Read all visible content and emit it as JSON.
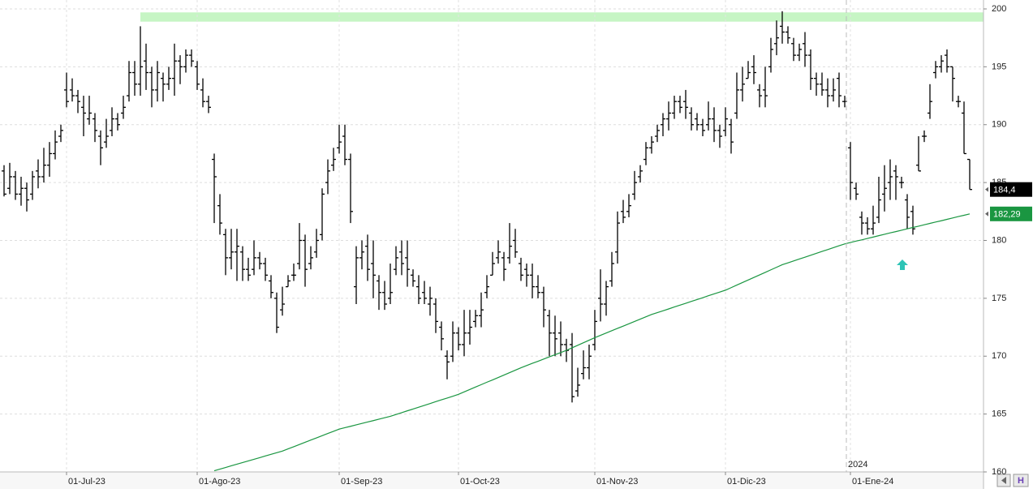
{
  "chart_data": {
    "type": "ohlc",
    "year_label": "2024",
    "categories": [
      null,
      null,
      null,
      null,
      null,
      null,
      null,
      null,
      null,
      null,
      null,
      "01-Jul-23",
      null,
      null,
      null,
      null,
      null,
      null,
      null,
      null,
      null,
      null,
      null,
      null,
      null,
      null,
      null,
      null,
      null,
      null,
      null,
      null,
      null,
      null,
      "01-Ago-23",
      null,
      null,
      null,
      null,
      null,
      null,
      null,
      null,
      null,
      null,
      null,
      null,
      null,
      null,
      null,
      null,
      null,
      null,
      null,
      null,
      null,
      null,
      null,
      null,
      "01-Sep-23",
      null,
      null,
      null,
      null,
      null,
      null,
      null,
      null,
      null,
      null,
      null,
      null,
      null,
      null,
      null,
      null,
      null,
      null,
      null,
      null,
      "01-Oct-23",
      null,
      null,
      null,
      null,
      null,
      null,
      null,
      null,
      null,
      null,
      null,
      null,
      null,
      null,
      null,
      null,
      null,
      null,
      null,
      null,
      null,
      null,
      null,
      "01-Nov-23",
      null,
      null,
      null,
      null,
      null,
      null,
      null,
      null,
      null,
      null,
      null,
      null,
      null,
      null,
      null,
      null,
      null,
      null,
      null,
      null,
      null,
      null,
      "01-Dic-23",
      null,
      null,
      null,
      null,
      null,
      null,
      null,
      null,
      null,
      null,
      null,
      null,
      null,
      null,
      null,
      null,
      null,
      null,
      null,
      null,
      null,
      "01-Ene-24",
      null,
      null,
      null,
      null,
      null,
      null,
      null,
      null,
      null,
      null,
      null,
      null,
      null,
      null,
      null,
      null,
      null,
      null,
      null,
      null,
      null
    ],
    "open": [
      186,
      184.5,
      185.5,
      184,
      184.5,
      184,
      186,
      185.5,
      186.5,
      187.5,
      189,
      193,
      193,
      192.5,
      191.5,
      190.5,
      190.5,
      189,
      188.5,
      189.5,
      190.5,
      191,
      192.5,
      194.5,
      193.5,
      195.5,
      194.5,
      193,
      194,
      193.5,
      194,
      195.5,
      195,
      196,
      195,
      193,
      192,
      187,
      183,
      180.5,
      178.5,
      179,
      179,
      177.5,
      177.5,
      178.5,
      178,
      176.5,
      175,
      174,
      176,
      177,
      178,
      180,
      178,
      179,
      180.5,
      185,
      186.5,
      188,
      189,
      187,
      176,
      178.5,
      179.5,
      178,
      176.5,
      175.5,
      175,
      177.5,
      179,
      178.5,
      177,
      176,
      175.5,
      174.5,
      174.5,
      172.5,
      170,
      170,
      172,
      171,
      172,
      173,
      173.5,
      175.5,
      177,
      178.5,
      178.5,
      178.5,
      180,
      178,
      177.5,
      177,
      176,
      175.5,
      173.5,
      172,
      172,
      171,
      171,
      167,
      168.5,
      169,
      171,
      175,
      174.5,
      176.5,
      179,
      182.5,
      182.5,
      184,
      185.5,
      187,
      188,
      189,
      190,
      190.5,
      191,
      192,
      192,
      191,
      190.5,
      190,
      190,
      190.5,
      189.5,
      189.5,
      190,
      191,
      193,
      194,
      195,
      193,
      193,
      195,
      197,
      198.5,
      198,
      197,
      196,
      197,
      196,
      194,
      193.5,
      193,
      192.5,
      194,
      192,
      188,
      184.5,
      182,
      181.5,
      181,
      182,
      184,
      185,
      186,
      185,
      183.5,
      182.5,
      186.5,
      189,
      191,
      194.5,
      195,
      196,
      195,
      192,
      191,
      187
    ],
    "high": [
      186.5,
      186.7,
      186,
      185.5,
      185,
      186,
      187,
      188,
      188.5,
      189.5,
      190,
      194.5,
      194,
      193,
      192.5,
      192.5,
      191,
      189.5,
      190.5,
      191.5,
      191,
      192.5,
      195.5,
      195.5,
      198.5,
      197,
      195,
      195.5,
      194.5,
      195,
      197,
      196,
      196.5,
      196.5,
      195.5,
      194,
      192.5,
      187.5,
      184,
      181,
      181,
      181,
      179.5,
      178.5,
      180,
      179,
      178.5,
      177,
      175.5,
      176,
      177,
      178,
      181.5,
      180.5,
      179.5,
      181,
      184.5,
      187,
      188,
      190,
      190,
      187.5,
      179.5,
      180,
      180.5,
      180,
      177,
      176.5,
      178,
      179.5,
      180,
      180,
      177.5,
      177,
      176.5,
      176,
      175,
      173,
      170.5,
      173,
      172.5,
      174,
      174,
      174,
      175.5,
      177,
      179,
      180,
      179,
      181.5,
      181,
      178.5,
      178,
      178,
      177,
      176,
      174,
      173.5,
      173,
      171.5,
      172,
      169,
      170.5,
      171,
      174,
      177.5,
      176.5,
      179,
      182.5,
      183.5,
      184,
      186,
      186.5,
      188.5,
      189,
      190,
      191,
      192,
      192.5,
      192.5,
      193,
      191.5,
      191,
      190.5,
      192,
      191.5,
      190,
      191.5,
      190.5,
      194.5,
      195,
      195.5,
      196,
      193.5,
      195,
      197.5,
      199,
      199.8,
      198.5,
      197.5,
      197,
      198,
      196.5,
      194.5,
      194.5,
      194,
      194,
      194.5,
      192.5,
      188.5,
      185,
      182.5,
      182,
      183,
      185.5,
      186.5,
      187,
      186.5,
      185.5,
      184,
      183,
      189,
      189.5,
      193.5,
      195.5,
      196,
      196.5,
      195,
      192.5,
      192,
      187
    ],
    "low": [
      183.8,
      184,
      183.5,
      183,
      182.5,
      183.5,
      184.5,
      185,
      185.5,
      187,
      188.5,
      191.5,
      192,
      191,
      189,
      190,
      188.5,
      186.5,
      188,
      189,
      189.5,
      190.5,
      192,
      192.5,
      192.5,
      193,
      191.5,
      192,
      192,
      193,
      192.5,
      193.5,
      194.5,
      195,
      193,
      191.5,
      191,
      181.5,
      180.5,
      177,
      177.5,
      176.5,
      176.5,
      176.5,
      177,
      177.5,
      176.5,
      175,
      172,
      173.5,
      176,
      176.5,
      177.5,
      176,
      177.5,
      178.5,
      180,
      184,
      186,
      187.5,
      186.5,
      181.5,
      174.5,
      177.5,
      176.5,
      175,
      174,
      174,
      174.5,
      177,
      177,
      176,
      176,
      174.5,
      174.5,
      173.5,
      172,
      170.5,
      168,
      169.5,
      170.5,
      170,
      171,
      172.5,
      172.5,
      175,
      177,
      178,
      176.5,
      178,
      178.5,
      176.5,
      176,
      175,
      175,
      172.5,
      170,
      170,
      170,
      169.5,
      166,
      166.5,
      168,
      168,
      170.5,
      173,
      173.5,
      176,
      178,
      181.5,
      182,
      183.5,
      185,
      186.5,
      187.5,
      188.5,
      189,
      189.5,
      190.5,
      191,
      190.5,
      189.5,
      189.5,
      189,
      189.5,
      188.5,
      188,
      189,
      187.5,
      190.5,
      192,
      194,
      193.5,
      191.5,
      191.5,
      194.5,
      196,
      197,
      197,
      195.5,
      195.5,
      195,
      193,
      192.5,
      192.5,
      191.5,
      192,
      191.5,
      191.5,
      183.5,
      183.5,
      180.5,
      180.5,
      180.5,
      181.5,
      182.5,
      183.5,
      183.5,
      184.5,
      181,
      180.5,
      186,
      188.5,
      190.5,
      194,
      194.5,
      194.5,
      192,
      191.5,
      187.5,
      184.4
    ],
    "close": [
      184,
      185.5,
      184,
      184.5,
      183.5,
      185.5,
      185.5,
      186.5,
      187.5,
      188.5,
      189.5,
      192,
      192.5,
      192,
      191,
      191,
      189.5,
      188,
      189,
      190.5,
      190,
      191.5,
      194.5,
      193.5,
      195,
      194.5,
      193,
      194.5,
      193.5,
      194,
      195.5,
      195,
      196,
      195.5,
      193.5,
      192,
      191.5,
      185.5,
      181.5,
      178.5,
      179,
      179.5,
      177.5,
      177,
      178.5,
      178,
      177,
      175.5,
      172.5,
      174.5,
      176.5,
      177,
      180,
      177.5,
      178.5,
      180,
      184,
      186,
      187,
      188.5,
      187,
      182.5,
      178.5,
      179,
      177.5,
      177,
      175.5,
      174.5,
      175.5,
      178.5,
      178,
      177.5,
      176.5,
      175,
      175,
      175,
      173,
      171.5,
      169.5,
      172,
      171,
      172,
      172.5,
      173.5,
      174,
      176,
      178,
      179,
      177.5,
      179.5,
      179,
      177,
      177,
      176,
      175.5,
      174,
      172,
      171.5,
      171,
      170.5,
      166.5,
      167.5,
      169,
      170,
      173,
      174.5,
      176,
      178,
      181.5,
      182,
      183,
      185,
      186,
      188,
      188.5,
      189.5,
      190.5,
      191,
      192,
      191.5,
      191.5,
      190,
      190,
      189.5,
      190.5,
      189.5,
      189,
      190.5,
      188.5,
      193,
      193.5,
      194.5,
      194.5,
      192.5,
      192.5,
      196.5,
      197.5,
      198,
      197.5,
      196,
      196.5,
      196,
      194,
      193.5,
      193,
      192.5,
      193,
      192.5,
      192,
      185,
      184,
      181.5,
      181,
      181.5,
      183.5,
      184.5,
      185.5,
      185.5,
      185,
      182,
      181,
      186,
      189,
      192,
      195,
      195.5,
      195,
      194,
      192,
      187.5,
      184.4
    ],
    "color": "#000000",
    "last_value_label": "184,4",
    "moving_average": {
      "color": "#1a9641",
      "last_value_label": "182,29",
      "values": [
        null,
        null,
        null,
        null,
        null,
        null,
        null,
        null,
        null,
        null,
        null,
        null,
        null,
        null,
        null,
        null,
        null,
        null,
        null,
        null,
        null,
        null,
        null,
        null,
        null,
        null,
        null,
        null,
        null,
        null,
        null,
        null,
        null,
        null,
        null,
        null,
        null,
        160.1,
        160.24,
        160.38,
        160.53,
        160.67,
        160.81,
        160.95,
        161.09,
        161.23,
        161.38,
        161.52,
        161.66,
        161.8,
        161.99,
        162.18,
        162.37,
        162.56,
        162.75,
        162.94,
        163.13,
        163.32,
        163.51,
        163.7,
        163.82,
        163.94,
        164.07,
        164.19,
        164.31,
        164.43,
        164.56,
        164.68,
        164.8,
        164.96,
        165.12,
        165.28,
        165.43,
        165.59,
        165.75,
        165.91,
        166.07,
        166.23,
        166.38,
        166.54,
        166.7,
        166.91,
        167.12,
        167.33,
        167.54,
        167.75,
        167.95,
        168.16,
        168.37,
        168.58,
        168.79,
        169.0,
        169.19,
        169.38,
        169.56,
        169.75,
        169.94,
        170.13,
        170.31,
        170.5,
        170.72,
        170.94,
        171.16,
        171.38,
        171.6,
        171.8,
        172.0,
        172.2,
        172.4,
        172.6,
        172.8,
        173.0,
        173.2,
        173.4,
        173.6,
        173.76,
        173.92,
        174.08,
        174.25,
        174.41,
        174.57,
        174.73,
        174.89,
        175.05,
        175.22,
        175.38,
        175.54,
        175.7,
        175.92,
        176.14,
        176.36,
        176.58,
        176.8,
        177.02,
        177.24,
        177.46,
        177.68,
        177.9,
        178.06,
        178.23,
        178.39,
        178.55,
        178.72,
        178.88,
        179.05,
        179.21,
        179.37,
        179.54,
        179.7,
        179.82,
        179.94,
        180.05,
        180.17,
        180.29,
        180.41,
        180.53,
        180.65,
        180.76,
        180.88,
        181.0,
        181.12,
        181.23,
        181.35,
        181.47,
        181.59,
        181.7,
        181.82,
        181.94,
        182.06,
        182.17,
        182.29
      ]
    },
    "band": {
      "ylim": [
        198.9,
        199.7
      ],
      "color": "#c6f5c4"
    },
    "ylim": [
      160,
      200.77
    ],
    "yticks": [
      160,
      165,
      170,
      175,
      180,
      185,
      190,
      195,
      200
    ],
    "grid": true
  }
}
